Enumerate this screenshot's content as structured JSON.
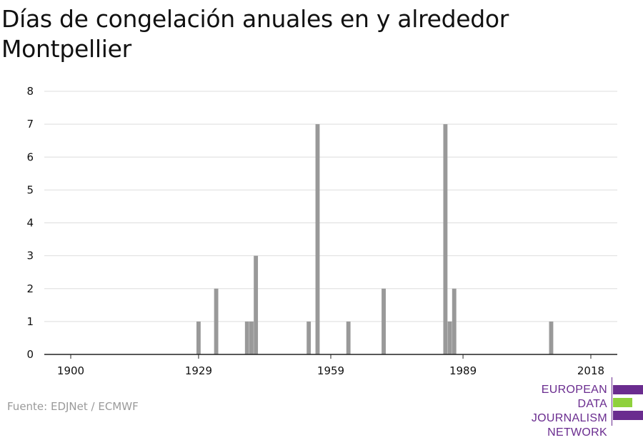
{
  "title": "Días de congelación anuales en y alrededor Montpellier",
  "source": "Fuente: EDJNet / ECMWF",
  "logo": {
    "line1": "EUROPEAN",
    "line2": "DATA JOURNALISM",
    "line3": "NETWORK",
    "color_primary": "#6a2c8f",
    "color_accent": "#8fd13c"
  },
  "chart_data": {
    "type": "bar",
    "title": "Días de congelación anuales en y alrededor Montpellier",
    "xlabel": "",
    "ylabel": "",
    "xlim": [
      1894,
      2024
    ],
    "ylim": [
      0,
      8
    ],
    "x_ticks": [
      1900,
      1929,
      1959,
      1989,
      2018
    ],
    "y_ticks": [
      0,
      1,
      2,
      3,
      4,
      5,
      6,
      7,
      8
    ],
    "grid": true,
    "bar_color": "#999999",
    "x": [
      1929,
      1933,
      1940,
      1941,
      1942,
      1954,
      1956,
      1963,
      1971,
      1985,
      1986,
      1987
    ],
    "values": [
      1,
      2,
      1,
      1,
      3,
      1,
      7,
      1,
      2,
      7,
      1,
      2
    ],
    "extra": {
      "x": [
        2009
      ],
      "values": [
        1
      ]
    }
  }
}
